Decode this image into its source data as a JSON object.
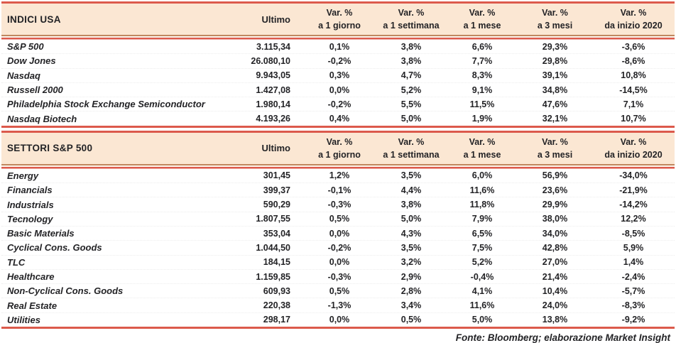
{
  "colors": {
    "header_bg": "#fbe7d3",
    "rule_red": "#dc5a4c",
    "rule_brick": "#c0875f",
    "text": "#232326"
  },
  "tables": [
    {
      "title": "INDICI USA",
      "ultimo_label": "Ultimo",
      "var_cols": [
        {
          "line1": "Var. %",
          "line2": "a 1 giorno"
        },
        {
          "line1": "Var. %",
          "line2": "a 1 settimana"
        },
        {
          "line1": "Var. %",
          "line2": "a 1 mese"
        },
        {
          "line1": "Var. %",
          "line2": "a 3 mesi"
        },
        {
          "line1": "Var. %",
          "line2": "da inizio 2020"
        }
      ],
      "rows": [
        {
          "label": "S&P 500",
          "ultimo": "3.115,34",
          "vars": [
            "0,1%",
            "3,8%",
            "6,6%",
            "29,3%",
            "-3,6%"
          ]
        },
        {
          "label": "Dow Jones",
          "ultimo": "26.080,10",
          "vars": [
            "-0,2%",
            "3,8%",
            "7,7%",
            "29,8%",
            "-8,6%"
          ]
        },
        {
          "label": "Nasdaq",
          "ultimo": "9.943,05",
          "vars": [
            "0,3%",
            "4,7%",
            "8,3%",
            "39,1%",
            "10,8%"
          ]
        },
        {
          "label": "Russell 2000",
          "ultimo": "1.427,08",
          "vars": [
            "0,0%",
            "5,2%",
            "9,1%",
            "34,8%",
            "-14,5%"
          ]
        },
        {
          "label": "Philadelphia Stock Exchange Semiconductor",
          "ultimo": "1.980,14",
          "vars": [
            "-0,2%",
            "5,5%",
            "11,5%",
            "47,6%",
            "7,1%"
          ]
        },
        {
          "label": "Nasdaq Biotech",
          "ultimo": "4.193,26",
          "vars": [
            "0,4%",
            "5,0%",
            "1,9%",
            "32,1%",
            "10,7%"
          ]
        }
      ]
    },
    {
      "title": "SETTORI S&P 500",
      "ultimo_label": "Ultimo",
      "var_cols": [
        {
          "line1": "Var. %",
          "line2": "a 1 giorno"
        },
        {
          "line1": "Var. %",
          "line2": "a 1 settimana"
        },
        {
          "line1": "Var. %",
          "line2": "a 1 mese"
        },
        {
          "line1": "Var. %",
          "line2": "a 3 mesi"
        },
        {
          "line1": "Var. %",
          "line2": "da inizio 2020"
        }
      ],
      "rows": [
        {
          "label": "Energy",
          "ultimo": "301,45",
          "vars": [
            "1,2%",
            "3,5%",
            "6,0%",
            "56,9%",
            "-34,0%"
          ]
        },
        {
          "label": "Financials",
          "ultimo": "399,37",
          "vars": [
            "-0,1%",
            "4,4%",
            "11,6%",
            "23,6%",
            "-21,9%"
          ]
        },
        {
          "label": "Industrials",
          "ultimo": "590,29",
          "vars": [
            "-0,3%",
            "3,8%",
            "11,8%",
            "29,9%",
            "-14,2%"
          ]
        },
        {
          "label": "Tecnology",
          "ultimo": "1.807,55",
          "vars": [
            "0,5%",
            "5,0%",
            "7,9%",
            "38,0%",
            "12,2%"
          ]
        },
        {
          "label": "Basic Materials",
          "ultimo": "353,04",
          "vars": [
            "0,0%",
            "4,3%",
            "6,5%",
            "34,0%",
            "-8,5%"
          ]
        },
        {
          "label": "Cyclical Cons. Goods",
          "ultimo": "1.044,50",
          "vars": [
            "-0,2%",
            "3,5%",
            "7,5%",
            "42,8%",
            "5,9%"
          ]
        },
        {
          "label": "TLC",
          "ultimo": "184,15",
          "vars": [
            "0,0%",
            "3,2%",
            "5,2%",
            "27,0%",
            "1,4%"
          ]
        },
        {
          "label": "Healthcare",
          "ultimo": "1.159,85",
          "vars": [
            "-0,3%",
            "2,9%",
            "-0,4%",
            "21,4%",
            "-2,4%"
          ]
        },
        {
          "label": "Non-Cyclical Cons. Goods",
          "ultimo": "609,93",
          "vars": [
            "0,5%",
            "2,8%",
            "4,1%",
            "10,4%",
            "-5,7%"
          ]
        },
        {
          "label": "Real Estate",
          "ultimo": "220,38",
          "vars": [
            "-1,3%",
            "3,4%",
            "11,6%",
            "24,0%",
            "-8,3%"
          ]
        },
        {
          "label": "Utilities",
          "ultimo": "298,17",
          "vars": [
            "0,0%",
            "0,5%",
            "5,0%",
            "13,8%",
            "-9,2%"
          ]
        }
      ]
    }
  ],
  "footer": {
    "source_line": "Fonte: Bloomberg; elaborazione Market Insight"
  }
}
